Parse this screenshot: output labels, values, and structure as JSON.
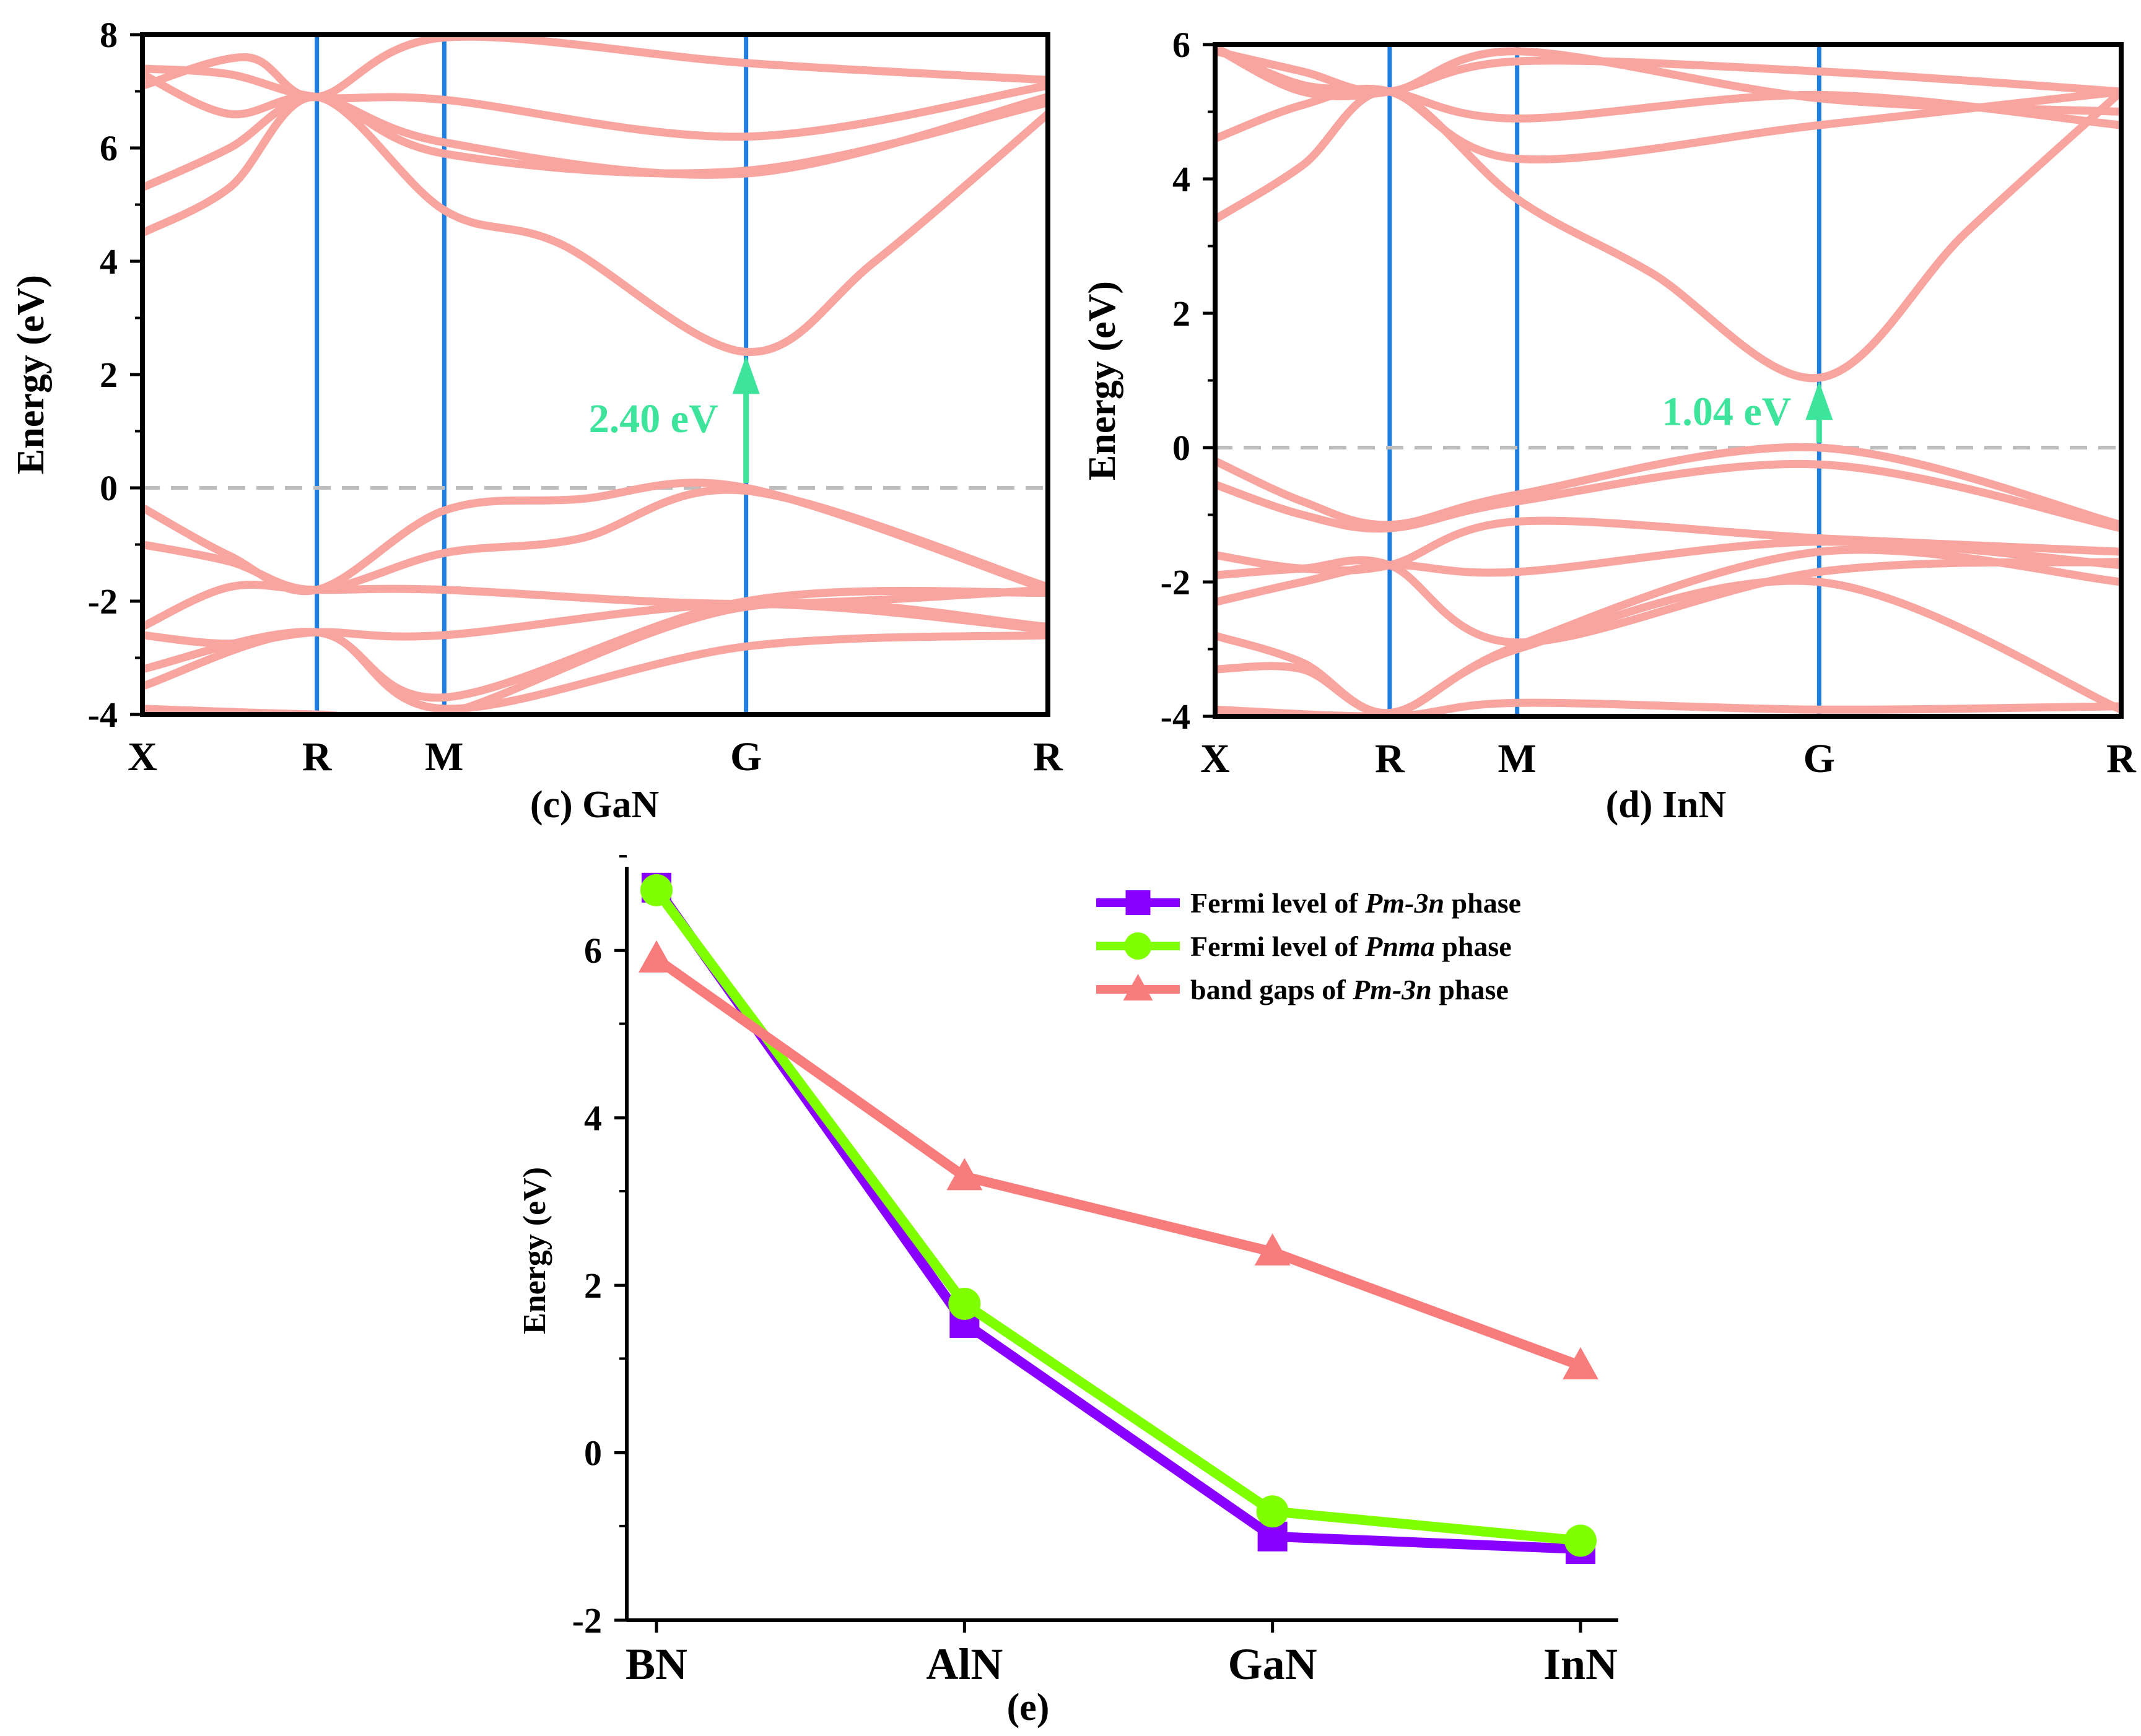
{
  "chart_data": [
    {
      "id": "c",
      "type": "line",
      "caption": "(c) GaN",
      "ylabel": "Energy (eV)",
      "ylim": [
        -4,
        8
      ],
      "yticks": [
        "-4",
        "-2",
        "0",
        "2",
        "4",
        "6",
        "8"
      ],
      "xticks": [
        "X",
        "R",
        "M",
        "G",
        "R"
      ],
      "k_path_positions": [
        0,
        1.0,
        1.73,
        3.46,
        5.19
      ],
      "k_range": [
        0,
        5.19
      ],
      "fermi_level": 0,
      "gap_label": "2.40 eV",
      "gap_arrow": {
        "k": 3.46,
        "from": 0,
        "to": 2.4
      },
      "colors": {
        "bands": "#f8a5a0",
        "symmetry_lines": "#1f7fe0",
        "fermi": "#bdbdbd",
        "gap_arrow": "#3ee39c"
      },
      "bands": [
        {
          "k": [
            0,
            1.0,
            1.73,
            3.46,
            5.19
          ],
          "e": [
            -3.2,
            -2.55,
            -3.7,
            -2.0,
            -1.85
          ]
        },
        {
          "k": [
            0,
            0.5,
            1.0,
            1.73,
            2.5,
            3.46,
            5.19
          ],
          "e": [
            -0.35,
            -1.2,
            -1.8,
            -0.4,
            -0.2,
            0.0,
            -1.8
          ]
        },
        {
          "k": [
            0,
            0.5,
            1.0,
            1.73,
            2.5,
            3.46,
            5.19
          ],
          "e": [
            -1.0,
            -1.3,
            -1.8,
            -1.15,
            -0.9,
            -0.05,
            -1.75
          ]
        },
        {
          "k": [
            0,
            0.5,
            1.0,
            1.73,
            3.46,
            5.19
          ],
          "e": [
            -2.45,
            -1.75,
            -1.8,
            -1.8,
            -2.05,
            -1.8
          ]
        },
        {
          "k": [
            0,
            0.5,
            1.0,
            1.73,
            3.46,
            5.19
          ],
          "e": [
            -2.6,
            -2.75,
            -2.55,
            -2.6,
            -2.05,
            -2.5
          ]
        },
        {
          "k": [
            0,
            1.0,
            1.73,
            3.46,
            5.19
          ],
          "e": [
            -3.5,
            -2.55,
            -3.9,
            -2.8,
            -2.6
          ]
        },
        {
          "k": [
            0,
            1.0,
            1.73,
            3.46,
            5.19
          ],
          "e": [
            -3.9,
            -4.0,
            -4.0,
            -2.1,
            -2.45
          ]
        },
        {
          "k": [
            0,
            0.5,
            1.0,
            1.73,
            2.4,
            3.46,
            4.2,
            5.19
          ],
          "e": [
            4.5,
            5.3,
            6.9,
            4.9,
            4.3,
            2.4,
            4.0,
            6.6
          ]
        },
        {
          "k": [
            0,
            0.5,
            1.0,
            1.73,
            3.46,
            5.19
          ],
          "e": [
            5.3,
            6.0,
            6.9,
            5.9,
            5.6,
            6.8
          ]
        },
        {
          "k": [
            0,
            0.5,
            1.0,
            1.73,
            3.46,
            5.19
          ],
          "e": [
            7.3,
            6.6,
            6.9,
            6.1,
            5.55,
            6.9
          ]
        },
        {
          "k": [
            0,
            0.5,
            1.0,
            1.73,
            3.46,
            5.19
          ],
          "e": [
            7.4,
            7.3,
            6.9,
            6.85,
            6.2,
            7.1
          ]
        },
        {
          "k": [
            0,
            0.6,
            1.0,
            1.73,
            3.46,
            5.19
          ],
          "e": [
            7.1,
            7.6,
            6.9,
            7.95,
            7.5,
            7.2
          ]
        }
      ]
    },
    {
      "id": "d",
      "type": "line",
      "caption": "(d) InN",
      "ylabel": "Energy (eV)",
      "ylim": [
        -4,
        6
      ],
      "yticks": [
        "-4",
        "-2",
        "0",
        "2",
        "4",
        "6"
      ],
      "xticks": [
        "X",
        "R",
        "M",
        "G",
        "R"
      ],
      "k_path_positions": [
        0,
        1.0,
        1.73,
        3.46,
        5.19
      ],
      "k_range": [
        0,
        5.19
      ],
      "fermi_level": 0,
      "gap_label": "1.04 eV",
      "gap_arrow": {
        "k": 3.46,
        "from": 0,
        "to": 1.04
      },
      "colors": {
        "bands": "#f8a5a0",
        "symmetry_lines": "#1f7fe0",
        "fermi": "#bdbdbd",
        "gap_arrow": "#3ee39c"
      },
      "bands": [
        {
          "k": [
            0,
            0.5,
            1.0,
            1.73,
            3.46,
            5.19
          ],
          "e": [
            -0.2,
            -0.8,
            -1.15,
            -0.7,
            0.0,
            -1.15
          ]
        },
        {
          "k": [
            0,
            0.5,
            1.0,
            1.73,
            3.46,
            5.19
          ],
          "e": [
            -0.55,
            -1.0,
            -1.2,
            -0.8,
            -0.25,
            -1.2
          ]
        },
        {
          "k": [
            0,
            0.5,
            1.0,
            1.73,
            3.46,
            5.19
          ],
          "e": [
            -1.6,
            -1.8,
            -1.75,
            -1.1,
            -1.35,
            -1.55
          ]
        },
        {
          "k": [
            0,
            0.5,
            1.0,
            1.73,
            3.46,
            5.19
          ],
          "e": [
            -2.3,
            -2.0,
            -1.75,
            -1.85,
            -1.4,
            -1.75
          ]
        },
        {
          "k": [
            0,
            0.5,
            1.0,
            1.73,
            3.46,
            5.19
          ],
          "e": [
            -1.9,
            -1.8,
            -1.75,
            -2.9,
            -1.85,
            -1.7
          ]
        },
        {
          "k": [
            0,
            0.5,
            1.0,
            1.73,
            3.46,
            5.19
          ],
          "e": [
            -2.8,
            -3.2,
            -3.95,
            -2.95,
            -1.55,
            -2.0
          ]
        },
        {
          "k": [
            0,
            0.5,
            1.0,
            1.73,
            3.46,
            5.19
          ],
          "e": [
            -3.3,
            -3.3,
            -3.95,
            -3.0,
            -2.0,
            -3.9
          ]
        },
        {
          "k": [
            0,
            1.0,
            1.73,
            3.46,
            5.19
          ],
          "e": [
            -3.9,
            -4.0,
            -3.8,
            -3.9,
            -3.85
          ]
        },
        {
          "k": [
            0,
            0.5,
            1.0,
            1.73,
            2.5,
            3.46,
            4.3,
            5.19
          ],
          "e": [
            3.4,
            4.2,
            5.3,
            3.7,
            2.6,
            1.04,
            3.2,
            5.3
          ]
        },
        {
          "k": [
            0,
            0.5,
            1.0,
            1.73,
            3.46,
            5.19
          ],
          "e": [
            4.6,
            5.1,
            5.3,
            4.3,
            4.8,
            5.3
          ]
        },
        {
          "k": [
            0,
            0.5,
            1.0,
            1.73,
            3.46,
            5.19
          ],
          "e": [
            5.95,
            5.4,
            5.3,
            4.9,
            5.25,
            4.8
          ]
        },
        {
          "k": [
            0,
            0.5,
            1.0,
            1.73,
            3.46,
            5.19
          ],
          "e": [
            5.95,
            5.3,
            5.3,
            5.75,
            5.6,
            5.3
          ]
        },
        {
          "k": [
            0,
            0.5,
            1.0,
            1.73,
            3.46,
            5.19
          ],
          "e": [
            5.9,
            5.6,
            5.3,
            5.9,
            5.2,
            5.0
          ]
        }
      ]
    },
    {
      "id": "e",
      "type": "line",
      "caption": "(e)",
      "ylabel": "Energy (eV)",
      "ylim": [
        -2,
        7
      ],
      "yticks": [
        "-2",
        "0",
        "2",
        "4",
        "6"
      ],
      "categories": [
        "BN",
        "AlN",
        "GaN",
        "InN"
      ],
      "legend_position": "top-right",
      "series": [
        {
          "name": "Fermi level of ",
          "name_italic": "Pm-3n",
          "name_suffix": " phase",
          "marker": "square",
          "color": "#8a00ff",
          "values": [
            6.75,
            1.55,
            -1.0,
            -1.15
          ]
        },
        {
          "name": "Fermi level of ",
          "name_italic": "Pnma",
          "name_suffix": " phase",
          "marker": "circle",
          "color": "#80ff00",
          "values": [
            6.72,
            1.78,
            -0.7,
            -1.05
          ]
        },
        {
          "name": "band gaps of ",
          "name_italic": "Pm-3n",
          "name_suffix": " phase",
          "marker": "triangle",
          "color": "#f87c7c",
          "values": [
            5.9,
            3.3,
            2.4,
            1.04
          ]
        }
      ]
    }
  ]
}
